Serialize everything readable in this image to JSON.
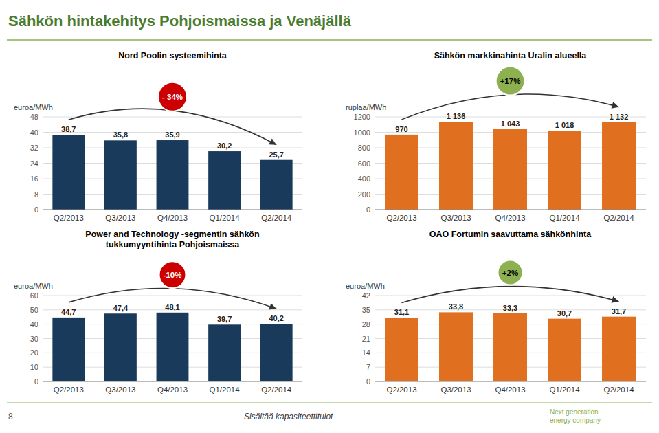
{
  "title": "Sähkön hintakehitys Pohjoismaissa ja Venäjällä",
  "annotations": [
    "8",
    "Sisältää kapasiteettitulot",
    "Next generation\nenergy company"
  ],
  "chart_data": [
    {
      "type": "bar",
      "title": "Nord Poolin systeemihinta",
      "ylabel": "euroa/MWh",
      "categories": [
        "Q2/2013",
        "Q3/2013",
        "Q4/2013",
        "Q1/2014",
        "Q2/2014"
      ],
      "values": [
        38.7,
        35.8,
        35.9,
        30.2,
        25.7
      ],
      "value_labels": [
        "38,7",
        "35,8",
        "35,9",
        "30,2",
        "25,7"
      ],
      "color": "#1a3a5c",
      "ylim": [
        0,
        48
      ],
      "yticks": [
        0,
        8,
        16,
        24,
        32,
        40,
        48
      ],
      "grid": true,
      "data_labels": true,
      "annotation": {
        "text": "- 34%",
        "color": "#cc0000"
      }
    },
    {
      "type": "bar",
      "title": "Sähkön markkinahinta Uralin alueella",
      "ylabel": "ruplaa/MWh",
      "categories": [
        "Q2/2013",
        "Q3/2013",
        "Q4/2013",
        "Q1/2014",
        "Q2/2014"
      ],
      "values": [
        970,
        1136,
        1043,
        1018,
        1132
      ],
      "value_labels": [
        "970",
        "1 136",
        "1 043",
        "1 018",
        "1 132"
      ],
      "color": "#e07020",
      "ylim": [
        0,
        1200
      ],
      "yticks": [
        0,
        200,
        400,
        600,
        800,
        1000,
        1200
      ],
      "grid": true,
      "data_labels": true,
      "annotation": {
        "text": "+17%",
        "color": "#8db050"
      }
    },
    {
      "type": "bar",
      "title": "Power and Technology -segmentin sähkön\ntukkumyyntihinta Pohjoismaissa",
      "ylabel": "euroa/MWh",
      "categories": [
        "Q2/2013",
        "Q3/2013",
        "Q4/2013",
        "Q1/2014",
        "Q2/2014"
      ],
      "values": [
        44.7,
        47.4,
        48.1,
        39.7,
        40.2
      ],
      "value_labels": [
        "44,7",
        "47,4",
        "48,1",
        "39,7",
        "40,2"
      ],
      "color": "#1a3a5c",
      "ylim": [
        0,
        60
      ],
      "yticks": [
        0,
        10,
        20,
        30,
        40,
        50,
        60
      ],
      "grid": true,
      "data_labels": true,
      "annotation": {
        "text": "-10%",
        "color": "#cc0000"
      }
    },
    {
      "type": "bar",
      "title": "OAO Fortumin saavuttama sähkönhinta",
      "ylabel": "euroa/MWh",
      "categories": [
        "Q2/2013",
        "Q3/2013",
        "Q4/2013",
        "Q1/2014",
        "Q2/2014"
      ],
      "values": [
        31.1,
        33.8,
        33.3,
        30.7,
        31.7
      ],
      "value_labels": [
        "31,1",
        "33,8",
        "33,3",
        "30,7",
        "31,7"
      ],
      "color": "#e07020",
      "ylim": [
        0,
        42
      ],
      "yticks": [
        0,
        7,
        14,
        21,
        28,
        35,
        42
      ],
      "grid": true,
      "data_labels": true,
      "annotation": {
        "text": "+2%",
        "color": "#8db050"
      }
    }
  ]
}
